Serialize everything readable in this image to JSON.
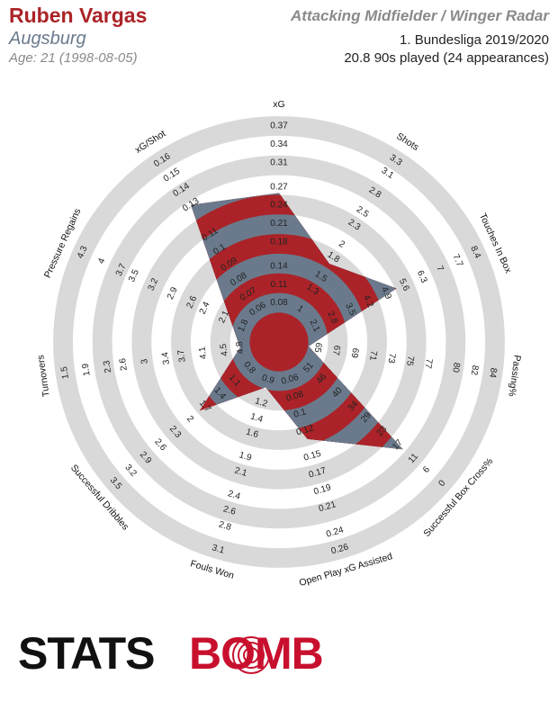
{
  "header": {
    "name": "Ruben Vargas",
    "team": "Augsburg",
    "age": "Age: 21 (1998-08-05)",
    "radar_title": "Attacking Midfielder / Winger Radar",
    "competition": "1. Bundesliga 2019/2020",
    "minutes": "20.8 90s played (24 appearances)"
  },
  "logo": [
    "STATS",
    "BOMB"
  ],
  "chart_data": {
    "type": "radar",
    "categories": [
      "xG",
      "Shots",
      "Touches In Box",
      "Passing%",
      "Successful Box Cross%",
      "Open Play xG Assisted",
      "Fouls Won",
      "Successful Dribbles",
      "Turnovers",
      "Pressure Regains",
      "xG/Shot"
    ],
    "values": [
      0.26,
      1.7,
      5.3,
      64,
      15,
      0.13,
      1.0,
      1.8,
      4.8,
      2.0,
      0.13
    ],
    "ticks": [
      [
        0.08,
        0.11,
        0.14,
        0.18,
        0.21,
        0.24,
        0.27,
        0.31,
        0.34,
        0.37
      ],
      [
        1.0,
        1.3,
        1.5,
        1.8,
        2.0,
        2.3,
        2.5,
        2.8,
        3.1,
        3.3
      ],
      [
        2.1,
        2.8,
        3.5,
        4.2,
        4.9,
        5.6,
        6.3,
        7.0,
        7.7,
        8.4
      ],
      [
        65,
        67,
        69,
        71,
        73,
        75,
        77,
        80,
        82,
        84
      ],
      [
        51,
        46,
        40,
        34,
        29,
        23,
        17,
        11,
        6,
        0
      ],
      [
        0.06,
        0.08,
        0.1,
        0.12,
        0.15,
        0.17,
        0.19,
        0.21,
        0.24,
        0.26
      ],
      [
        0.9,
        1.2,
        1.4,
        1.6,
        1.9,
        2.1,
        2.4,
        2.6,
        2.8,
        3.1
      ],
      [
        0.8,
        1.1,
        1.4,
        1.7,
        2.0,
        2.3,
        2.6,
        2.9,
        3.2,
        3.5
      ],
      [
        4.8,
        4.5,
        4.1,
        3.7,
        3.4,
        3.0,
        2.6,
        2.3,
        1.9,
        1.5
      ],
      [
        1.8,
        2.1,
        2.4,
        2.6,
        2.9,
        3.2,
        3.5,
        3.7,
        4.0,
        4.3
      ],
      [
        0.06,
        0.07,
        0.08,
        0.09,
        0.1,
        0.11,
        0.13,
        0.14,
        0.15,
        0.16
      ]
    ],
    "lims": [
      [
        0.08,
        0.37
      ],
      [
        1.0,
        3.3
      ],
      [
        2.1,
        8.4
      ],
      [
        65,
        84
      ],
      [
        51,
        0
      ],
      [
        0.06,
        0.26
      ],
      [
        0.9,
        3.1
      ],
      [
        0.8,
        3.5
      ],
      [
        4.8,
        1.5
      ],
      [
        1.8,
        4.3
      ],
      [
        0.06,
        0.16
      ]
    ],
    "ring_colors": [
      "#d9d9d9",
      "#ffffff"
    ],
    "fill_colors": [
      "#ab2328",
      "#6a7a8c"
    ]
  }
}
